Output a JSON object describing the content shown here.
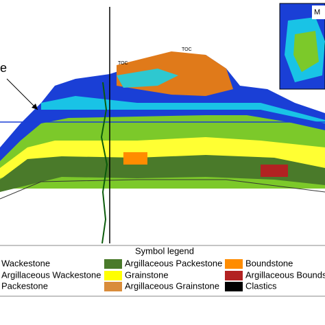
{
  "figure": {
    "side_label": "e",
    "inset_label": "M",
    "toc_labels": [
      "TOC",
      "TOC"
    ]
  },
  "legend": {
    "title": "Symbol legend",
    "items": [
      {
        "label": "Wackestone"
      },
      {
        "label": "Argillaceous Packestone"
      },
      {
        "label": "Boundstone"
      },
      {
        "label": "Argillaceous Wackestone"
      },
      {
        "label": "Grainstone"
      },
      {
        "label": "Argillaceous Bounds"
      },
      {
        "label": "Packestone"
      },
      {
        "label": "Argillaceous Grainstone"
      },
      {
        "label": "Clastics"
      }
    ]
  }
}
